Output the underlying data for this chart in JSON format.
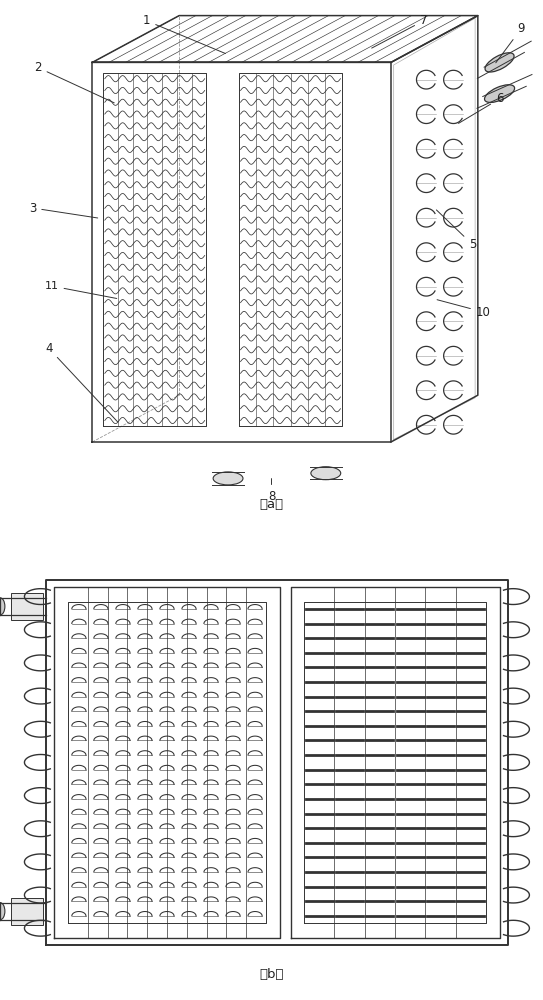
{
  "fig_width": 5.43,
  "fig_height": 10.0,
  "bg_color": "#ffffff",
  "line_color": "#333333",
  "lc": "#333333"
}
